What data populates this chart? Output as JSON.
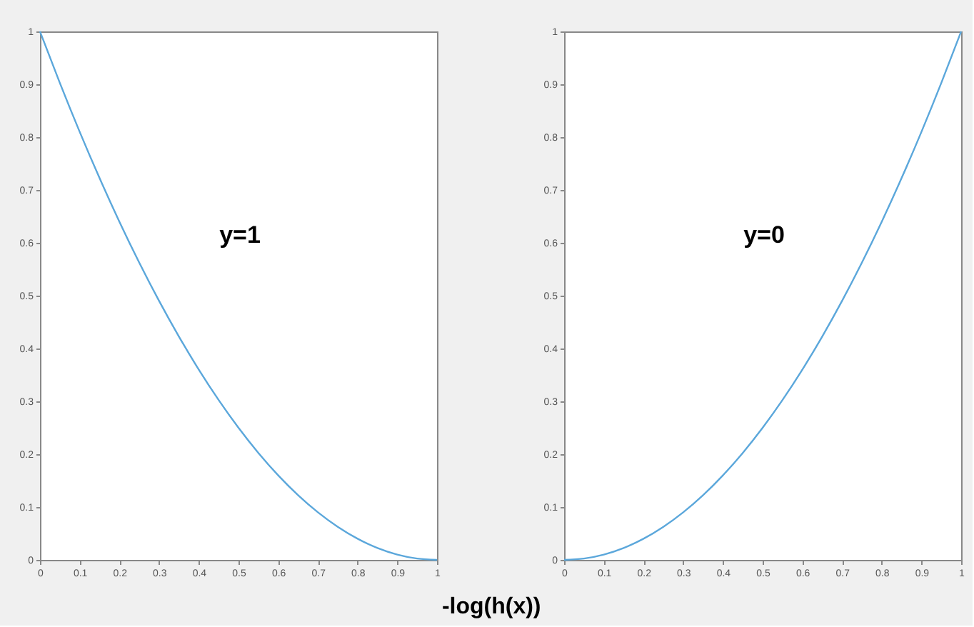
{
  "chart_data": [
    {
      "type": "line",
      "xlabel": "-log(h(x))",
      "annotations": [
        "y=1"
      ],
      "x": [
        0,
        0.05,
        0.1,
        0.15,
        0.2,
        0.25,
        0.3,
        0.35,
        0.4,
        0.45,
        0.5,
        0.55,
        0.6,
        0.65,
        0.7,
        0.75,
        0.8,
        0.85,
        0.9,
        0.95,
        1
      ],
      "series": [
        {
          "color": "#5ba7db",
          "values": [
            1,
            0.9025,
            0.81,
            0.7225,
            0.64,
            0.5625,
            0.49,
            0.4225,
            0.36,
            0.3025,
            0.25,
            0.2025,
            0.16,
            0.1225,
            0.09,
            0.0625,
            0.04,
            0.0225,
            0.01,
            0.0025,
            0
          ]
        }
      ],
      "xlim": [
        0,
        1
      ],
      "ylim": [
        0,
        1
      ],
      "xticks": [
        0,
        0.1,
        0.2,
        0.3,
        0.4,
        0.5,
        0.6,
        0.7,
        0.8,
        0.9,
        1
      ],
      "yticks": [
        0,
        0.1,
        0.2,
        0.3,
        0.4,
        0.5,
        0.6,
        0.7,
        0.8,
        0.9,
        1
      ],
      "grid": false
    },
    {
      "type": "line",
      "annotations": [
        "y=0"
      ],
      "x": [
        0,
        0.05,
        0.1,
        0.15,
        0.2,
        0.25,
        0.3,
        0.35,
        0.4,
        0.45,
        0.5,
        0.55,
        0.6,
        0.65,
        0.7,
        0.75,
        0.8,
        0.85,
        0.9,
        0.95,
        1
      ],
      "series": [
        {
          "color": "#5ba7db",
          "values": [
            0,
            0.0025,
            0.01,
            0.0225,
            0.04,
            0.0625,
            0.09,
            0.1225,
            0.16,
            0.2025,
            0.25,
            0.3025,
            0.36,
            0.4225,
            0.49,
            0.5625,
            0.64,
            0.7225,
            0.81,
            0.9025,
            1
          ]
        }
      ],
      "xlim": [
        0,
        1
      ],
      "ylim": [
        0,
        1
      ],
      "xticks": [
        0,
        0.1,
        0.2,
        0.3,
        0.4,
        0.5,
        0.6,
        0.7,
        0.8,
        0.9,
        1
      ],
      "yticks": [
        0,
        0.1,
        0.2,
        0.3,
        0.4,
        0.5,
        0.6,
        0.7,
        0.8,
        0.9,
        1
      ],
      "grid": false
    }
  ]
}
